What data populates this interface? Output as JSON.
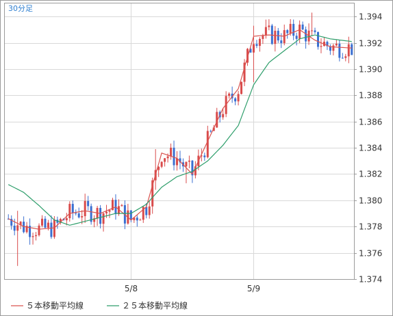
{
  "timeframe_label": "30分足",
  "colors": {
    "ma5": "#d9534f",
    "ma25": "#2e9e6b",
    "candle_up": "#d94b4b",
    "candle_down": "#3a6fd1",
    "grid": "#d8d8d8",
    "frame": "#9a9a9a"
  },
  "legend": [
    {
      "label": "５本移動平均線",
      "color": "#d9534f"
    },
    {
      "label": "２５本移動平均線",
      "color": "#2e9e6b"
    }
  ],
  "chart_data": {
    "type": "candlestick",
    "title": "",
    "xlabel": "",
    "ylabel": "",
    "ylim": [
      1.374,
      1.395
    ],
    "y_ticks": [
      "1.394",
      "1.392",
      "1.390",
      "1.388",
      "1.386",
      "1.384",
      "1.382",
      "1.380",
      "1.378",
      "1.376",
      "1.374"
    ],
    "x_ticks": [
      {
        "label": "5/8",
        "index": 40
      },
      {
        "label": "5/9",
        "index": 80
      }
    ],
    "n_candles": 113,
    "grid": true,
    "legend_position": "bottom-left",
    "series": [
      {
        "name": "５本移動平均線",
        "points": [
          [
            0,
            1.3786
          ],
          [
            5,
            1.378
          ],
          [
            10,
            1.3778
          ],
          [
            15,
            1.3779
          ],
          [
            20,
            1.379
          ],
          [
            25,
            1.3792
          ],
          [
            30,
            1.379
          ],
          [
            35,
            1.3795
          ],
          [
            40,
            1.3785
          ],
          [
            45,
            1.3795
          ],
          [
            50,
            1.3836
          ],
          [
            55,
            1.3832
          ],
          [
            60,
            1.382
          ],
          [
            65,
            1.3845
          ],
          [
            70,
            1.387
          ],
          [
            75,
            1.3885
          ],
          [
            80,
            1.3925
          ],
          [
            85,
            1.3926
          ],
          [
            90,
            1.3925
          ],
          [
            95,
            1.393
          ],
          [
            100,
            1.3922
          ],
          [
            105,
            1.3917
          ],
          [
            112,
            1.3916
          ]
        ]
      },
      {
        "name": "２５本移動平均線",
        "points": [
          [
            0,
            1.3812
          ],
          [
            5,
            1.3806
          ],
          [
            10,
            1.3796
          ],
          [
            15,
            1.3785
          ],
          [
            20,
            1.3781
          ],
          [
            25,
            1.3784
          ],
          [
            30,
            1.3787
          ],
          [
            35,
            1.379
          ],
          [
            40,
            1.379
          ],
          [
            45,
            1.3797
          ],
          [
            50,
            1.381
          ],
          [
            55,
            1.3818
          ],
          [
            60,
            1.3822
          ],
          [
            65,
            1.383
          ],
          [
            70,
            1.3842
          ],
          [
            75,
            1.3857
          ],
          [
            80,
            1.3888
          ],
          [
            85,
            1.3905
          ],
          [
            90,
            1.3914
          ],
          [
            95,
            1.3923
          ],
          [
            100,
            1.3926
          ],
          [
            105,
            1.3923
          ],
          [
            112,
            1.3921
          ]
        ]
      }
    ],
    "candles_summary": [
      {
        "i": 3,
        "low": 1.375,
        "high": 1.3792
      },
      {
        "i": 38,
        "low": 1.3778,
        "high": 1.38
      },
      {
        "i": 48,
        "low": 1.3808,
        "high": 1.3839
      },
      {
        "i": 58,
        "low": 1.3813,
        "high": 1.3828
      },
      {
        "i": 80,
        "low": 1.389,
        "high": 1.3933
      },
      {
        "i": 99,
        "low": 1.3925,
        "high": 1.3943
      },
      {
        "i": 112,
        "low": 1.3911,
        "high": 1.392
      }
    ]
  }
}
